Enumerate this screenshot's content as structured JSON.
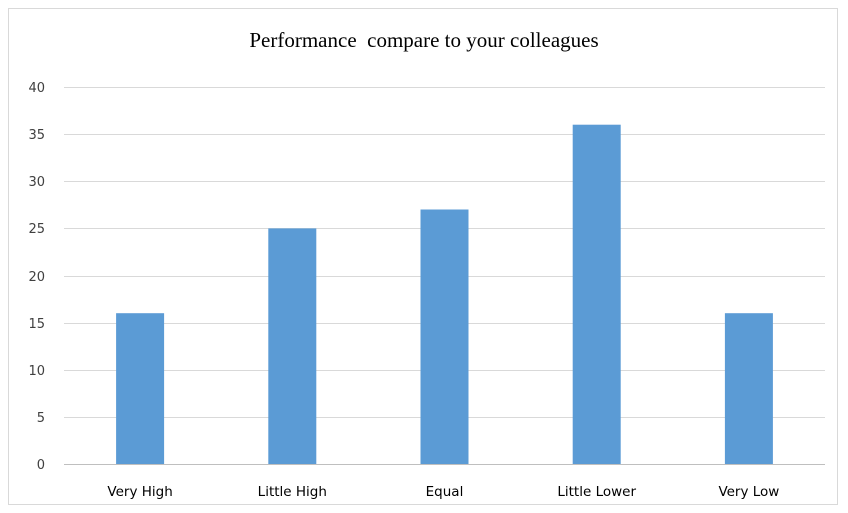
{
  "chart_data": {
    "type": "bar",
    "title": "Performance  compare to your colleagues",
    "categories": [
      "Very High",
      "Little High",
      "Equal",
      "Little Lower",
      "Very Low"
    ],
    "values": [
      16,
      25,
      27,
      36,
      16
    ],
    "ylim": [
      0,
      40
    ],
    "yticks": [
      0,
      5,
      10,
      15,
      20,
      25,
      30,
      35,
      40
    ],
    "xlabel": "",
    "ylabel": "",
    "grid": true,
    "legend": "none",
    "colors": {
      "bar": "#5b9bd5",
      "gridline": "#d9d9d9",
      "axis": "#bfbfbf"
    }
  }
}
